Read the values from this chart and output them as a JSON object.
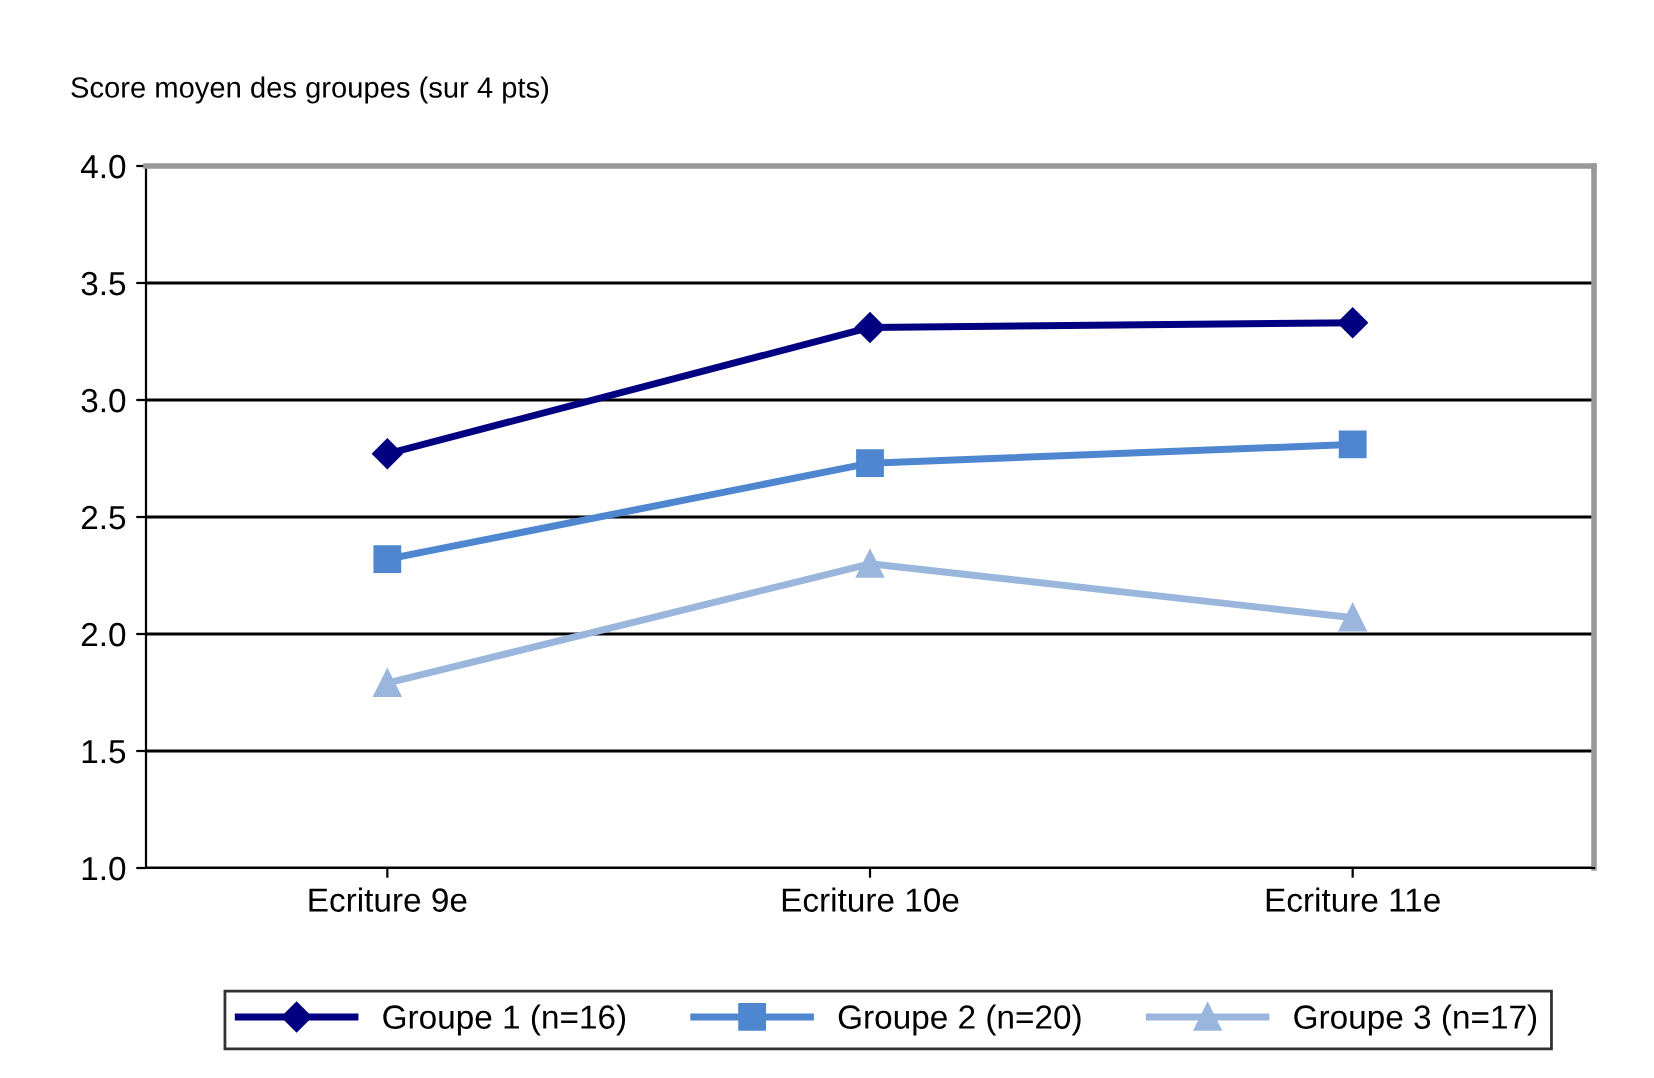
{
  "chart_data": {
    "type": "line",
    "ylabel": "Score moyen des groupes (sur 4 pts)",
    "categories": [
      "Ecriture 9e",
      "Ecriture 10e",
      "Ecriture 11e"
    ],
    "series": [
      {
        "name": "Groupe 1 (n=16)",
        "color": "#000080",
        "values": [
          2.77,
          3.31,
          3.33
        ],
        "marker": "diamond"
      },
      {
        "name": "Groupe 2 (n=20)",
        "color": "#4f86d0",
        "values": [
          2.32,
          2.73,
          2.81
        ],
        "marker": "square"
      },
      {
        "name": "Groupe 3 (n=17)",
        "color": "#9ab6dc",
        "values": [
          1.79,
          2.3,
          2.07
        ],
        "marker": "triangle"
      }
    ],
    "ylim": [
      1.0,
      4.0
    ],
    "yticks": [
      {
        "value": 1.0,
        "label": "1.0"
      },
      {
        "value": 1.5,
        "label": "1.5"
      },
      {
        "value": 2.0,
        "label": "2.0"
      },
      {
        "value": 2.5,
        "label": "2.5"
      },
      {
        "value": 3.0,
        "label": "3.0"
      },
      {
        "value": 3.5,
        "label": "3.5"
      },
      {
        "value": 4.0,
        "label": "4.0"
      }
    ],
    "grid": "y",
    "legend": "bottom"
  }
}
